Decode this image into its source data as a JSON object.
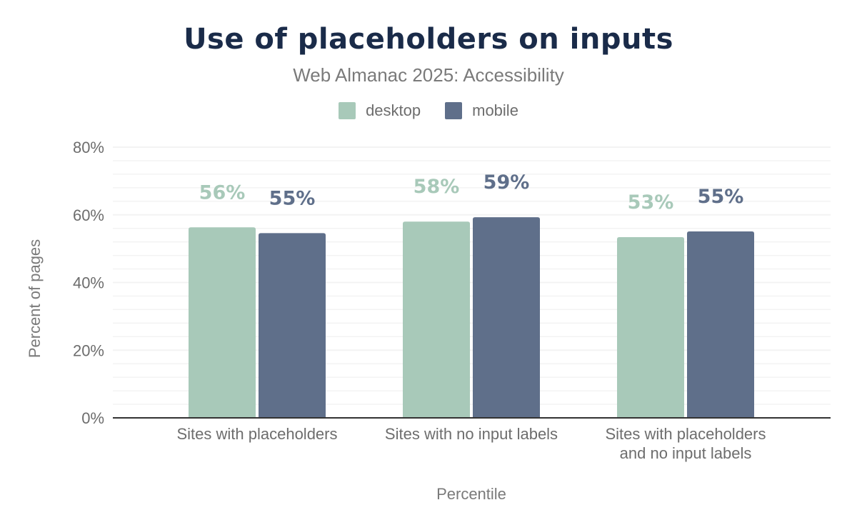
{
  "chart_data": {
    "type": "bar",
    "title": "Use of placeholders on inputs",
    "subtitle": "Web Almanac 2025: Accessibility",
    "xlabel": "Percentile",
    "ylabel": "Percent of pages",
    "ylim": [
      0,
      80
    ],
    "yticks": [
      "0%",
      "20%",
      "40%",
      "60%",
      "80%"
    ],
    "ytick_values": [
      0,
      20,
      40,
      60,
      80
    ],
    "minor_grid_step": 4,
    "grid": true,
    "legend_placement": "top",
    "categories": [
      [
        "Sites with placeholders"
      ],
      [
        "Sites with no input labels"
      ],
      [
        "Sites with placeholders",
        "and no input labels"
      ]
    ],
    "series": [
      {
        "name": "desktop",
        "color": "#a8c9b9",
        "values": [
          56.3,
          58.0,
          53.4
        ],
        "labels": [
          "56%",
          "58%",
          "53%"
        ]
      },
      {
        "name": "mobile",
        "color": "#5f6f8a",
        "values": [
          54.6,
          59.3,
          55.1
        ],
        "labels": [
          "55%",
          "59%",
          "55%"
        ]
      }
    ]
  }
}
